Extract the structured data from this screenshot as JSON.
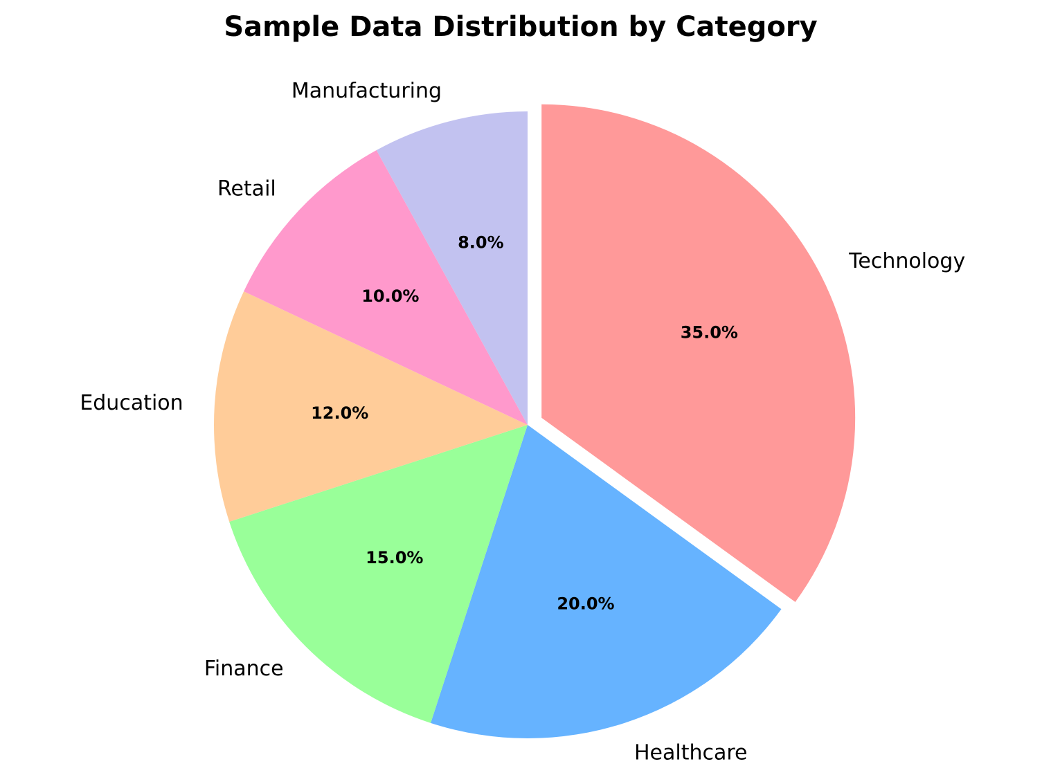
{
  "chart_data": {
    "type": "pie",
    "title": "Sample Data Distribution by Category",
    "categories": [
      "Technology",
      "Healthcare",
      "Finance",
      "Education",
      "Retail",
      "Manufacturing"
    ],
    "values": [
      35.0,
      20.0,
      15.0,
      12.0,
      10.0,
      8.0
    ],
    "percent_labels": [
      "35.0%",
      "20.0%",
      "15.0%",
      "12.0%",
      "10.0%",
      "8.0%"
    ],
    "colors": [
      "#ff9999",
      "#66b3ff",
      "#99ff99",
      "#ffcc99",
      "#ff99cc",
      "#c2c2f0"
    ],
    "exploded": [
      "Technology"
    ],
    "start_angle_deg": 90,
    "direction": "clockwise"
  }
}
